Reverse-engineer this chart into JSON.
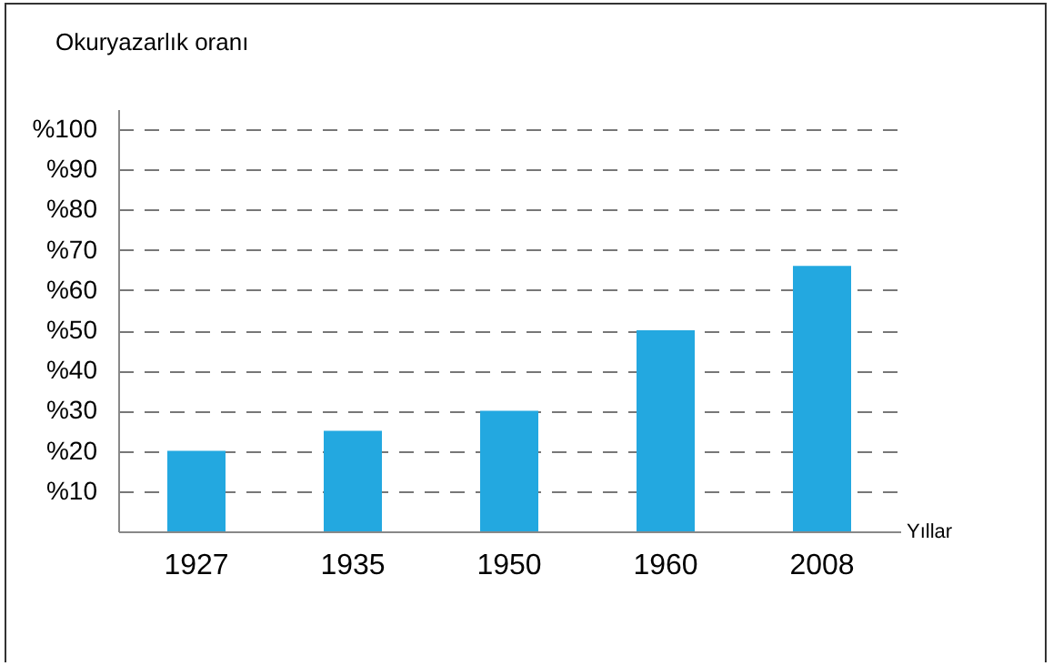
{
  "chart_data": {
    "type": "bar",
    "ylabel": "Okuryazarlık oranı",
    "xlabel": "Yıllar",
    "categories": [
      "1927",
      "1935",
      "1950",
      "1960",
      "2008"
    ],
    "values": [
      20,
      25,
      30,
      50,
      66
    ],
    "color": "#23a8e0",
    "ylim": [
      0,
      105
    ],
    "yticks": [
      {
        "value": 10,
        "label": "%10"
      },
      {
        "value": 20,
        "label": "%20"
      },
      {
        "value": 30,
        "label": "%30"
      },
      {
        "value": 40,
        "label": "%40"
      },
      {
        "value": 50,
        "label": "%50"
      },
      {
        "value": 60,
        "label": "%60"
      },
      {
        "value": 70,
        "label": "%70"
      },
      {
        "value": 80,
        "label": "%80"
      },
      {
        "value": 90,
        "label": "%90"
      },
      {
        "value": 100,
        "label": "%100"
      }
    ],
    "grid": "y"
  }
}
